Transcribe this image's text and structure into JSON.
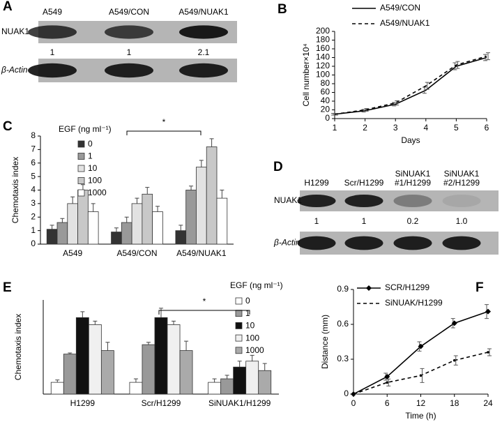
{
  "blots": [
    {
      "panel": "A",
      "lanes": [
        [
          "A549"
        ],
        [
          "A549/CON"
        ],
        [
          "A549/NUAK1"
        ]
      ],
      "rows": [
        {
          "name": "NUAK1",
          "quant": [
            "1",
            "1",
            "2.1"
          ]
        },
        {
          "name": "β-Actin"
        }
      ]
    },
    {
      "panel": "D",
      "lanes": [
        [
          "H1299"
        ],
        [
          "Scr/H1299"
        ],
        [
          "SiNUAK1",
          "#1/H1299"
        ],
        [
          "SiNUAK1",
          "#2/H1299"
        ]
      ],
      "rows": [
        {
          "name": "NUAK1",
          "quant": [
            "1",
            "1",
            "0.2",
            "1.0"
          ]
        },
        {
          "name": "β-Actin"
        }
      ]
    }
  ],
  "chart_data": [
    {
      "type": "line",
      "panel": "B",
      "x_label": "Days",
      "y_label": "Cell number×10⁴",
      "x": [
        1,
        2,
        3,
        4,
        5,
        6
      ],
      "xlim": [
        1,
        6
      ],
      "xticks": [
        1,
        2,
        3,
        4,
        5,
        6
      ],
      "ylim": [
        0,
        200
      ],
      "yticks": [
        0,
        20,
        40,
        60,
        80,
        100,
        120,
        140,
        160,
        180,
        200
      ],
      "series": [
        {
          "name": "A549/CON",
          "color": "#000000",
          "dash": false,
          "marker": "none",
          "values": [
            10,
            18,
            33,
            65,
            120,
            140
          ],
          "errors": [
            2,
            3,
            4,
            7,
            8,
            7
          ]
        },
        {
          "name": "A549/NUAK1",
          "color": "#000000",
          "dash": true,
          "marker": "none",
          "values": [
            10,
            20,
            36,
            75,
            123,
            143
          ],
          "errors": [
            2,
            3,
            5,
            8,
            8,
            8
          ]
        }
      ]
    },
    {
      "type": "bar",
      "panel": "C",
      "y_label": "Chemotaxis index",
      "legend_title": "EGF (ng ml⁻¹)",
      "annotation": "*",
      "categories": [
        "A549",
        "A549/CON",
        "A549/NUAK1"
      ],
      "ylim": [
        0,
        8
      ],
      "yticks": [
        0,
        1,
        2,
        3,
        4,
        5,
        6,
        7,
        8
      ],
      "series": [
        {
          "name": "0",
          "color": "#333333",
          "values": [
            1.1,
            0.9,
            1.0
          ],
          "errors": [
            0.3,
            0.3,
            0.4
          ]
        },
        {
          "name": "1",
          "color": "#999999",
          "values": [
            1.6,
            1.6,
            4.0
          ],
          "errors": [
            0.3,
            0.4,
            0.3
          ]
        },
        {
          "name": "10",
          "color": "#e2e2e2",
          "values": [
            3.0,
            3.0,
            5.7
          ],
          "errors": [
            0.5,
            0.4,
            0.5
          ]
        },
        {
          "name": "100",
          "color": "#c8c8c8",
          "values": [
            4.0,
            3.7,
            7.2
          ],
          "errors": [
            0.4,
            0.5,
            0.6
          ]
        },
        {
          "name": "1000",
          "color": "#ffffff",
          "values": [
            2.4,
            2.4,
            3.4
          ],
          "errors": [
            0.6,
            0.4,
            0.6
          ]
        }
      ]
    },
    {
      "type": "bar",
      "panel": "E",
      "y_label": "Chemotaxis index",
      "legend_title": "EGF (ng ml⁻¹)",
      "annotation": "*",
      "categories": [
        "H1299",
        "Scr/H1299",
        "SiNUAK1/H1299"
      ],
      "ylim": [
        0,
        8
      ],
      "series": [
        {
          "name": "0",
          "color": "#ffffff",
          "values": [
            1.0,
            1.0,
            1.0
          ],
          "errors": [
            0.2,
            0.3,
            0.3
          ]
        },
        {
          "name": "1",
          "color": "#999999",
          "values": [
            3.4,
            4.2,
            1.3
          ],
          "errors": [
            0.1,
            0.2,
            0.3
          ]
        },
        {
          "name": "10",
          "color": "#111111",
          "values": [
            6.5,
            6.5,
            2.3
          ],
          "errors": [
            0.5,
            0.8,
            0.5
          ]
        },
        {
          "name": "100",
          "color": "#f0f0f0",
          "values": [
            5.9,
            5.9,
            2.8
          ],
          "errors": [
            0.3,
            0.3,
            0.5
          ]
        },
        {
          "name": "1000",
          "color": "#aaaaaa",
          "values": [
            3.7,
            3.7,
            2.0
          ],
          "errors": [
            0.7,
            0.8,
            0.6
          ]
        }
      ]
    },
    {
      "type": "line",
      "panel": "F",
      "x_label": "Time (h)",
      "y_label": "Distance (mm)",
      "x": [
        0,
        6,
        12,
        18,
        24
      ],
      "xlim": [
        0,
        24
      ],
      "xticks": [
        0,
        6,
        12,
        18,
        24
      ],
      "ylim": [
        0,
        0.9
      ],
      "yticks": [
        0,
        0.3,
        0.6,
        0.9
      ],
      "series": [
        {
          "name": "SCR/H1299",
          "color": "#000000",
          "dash": false,
          "marker": "diamond",
          "values": [
            0,
            0.15,
            0.41,
            0.61,
            0.71
          ],
          "errors": [
            0,
            0.03,
            0.04,
            0.04,
            0.06
          ]
        },
        {
          "name": "SiNUAK/H1299",
          "color": "#000000",
          "dash": true,
          "marker": "dot",
          "values": [
            0,
            0.1,
            0.16,
            0.29,
            0.36
          ],
          "errors": [
            0,
            0.03,
            0.06,
            0.04,
            0.03
          ]
        }
      ]
    }
  ]
}
